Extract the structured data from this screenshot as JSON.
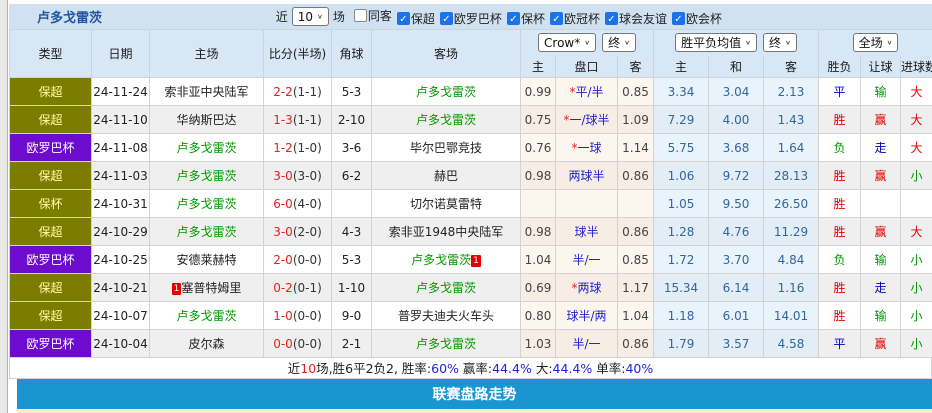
{
  "header": {
    "title": "卢多戈雷茨",
    "recent_prefix": "近",
    "recent_value": "10",
    "recent_suffix": "场",
    "filters": [
      {
        "label": "同客",
        "checked": false
      },
      {
        "label": "保超",
        "checked": true
      },
      {
        "label": "欧罗巴杯",
        "checked": true
      },
      {
        "label": "保杯",
        "checked": true
      },
      {
        "label": "欧冠杯",
        "checked": true
      },
      {
        "label": "球会友谊",
        "checked": true
      },
      {
        "label": "欧会杯",
        "checked": true
      }
    ]
  },
  "table": {
    "left_headers": [
      "类型",
      "日期",
      "主场",
      "比分(半场)",
      "角球",
      "客场"
    ],
    "selects": {
      "company": "Crow*",
      "company_time": "终",
      "europe": "胜平负均值",
      "europe_time": "终",
      "goals_scope": "全场"
    },
    "sub_headers": [
      "主",
      "盘口",
      "客",
      "主",
      "和",
      "客",
      "胜负",
      "让球",
      "进球数"
    ],
    "rows": [
      {
        "type": "保超",
        "type_color": "olive",
        "date": "24-11-24",
        "home": "索非亚中央陆军",
        "home_green": false,
        "home_badge": "",
        "score_ft": "2-2",
        "score_ht": "(1-1)",
        "corner": "5-3",
        "away": "卢多戈雷茨",
        "away_green": true,
        "away_badge": "",
        "asian_home": "0.99",
        "handicap_star": "*",
        "handicap": "平/半",
        "asian_away": "0.85",
        "eu_home": "3.34",
        "eu_draw": "3.04",
        "eu_away": "2.13",
        "result": "平",
        "result_color": "blue",
        "let_result": "输",
        "let_color": "green",
        "goals": "大",
        "goals_color": "red"
      },
      {
        "type": "保超",
        "type_color": "olive",
        "date": "24-11-10",
        "home": "华纳斯巴达",
        "home_green": false,
        "home_badge": "",
        "score_ft": "1-3",
        "score_ht": "(1-1)",
        "corner": "2-10",
        "away": "卢多戈雷茨",
        "away_green": true,
        "away_badge": "",
        "asian_home": "0.75",
        "handicap_star": "*",
        "handicap": "一/球半",
        "asian_away": "1.09",
        "eu_home": "7.29",
        "eu_draw": "4.00",
        "eu_away": "1.43",
        "result": "胜",
        "result_color": "red",
        "let_result": "赢",
        "let_color": "red",
        "goals": "大",
        "goals_color": "red"
      },
      {
        "type": "欧罗巴杯",
        "type_color": "purple",
        "date": "24-11-08",
        "home": "卢多戈雷茨",
        "home_green": true,
        "home_badge": "",
        "score_ft": "1-2",
        "score_ht": "(1-0)",
        "corner": "3-6",
        "away": "毕尔巴鄂竞技",
        "away_green": false,
        "away_badge": "",
        "asian_home": "0.76",
        "handicap_star": "*",
        "handicap": "一球",
        "asian_away": "1.14",
        "eu_home": "5.75",
        "eu_draw": "3.68",
        "eu_away": "1.64",
        "result": "负",
        "result_color": "green",
        "let_result": "走",
        "let_color": "blue",
        "goals": "大",
        "goals_color": "red"
      },
      {
        "type": "保超",
        "type_color": "olive",
        "date": "24-11-03",
        "home": "卢多戈雷茨",
        "home_green": true,
        "home_badge": "",
        "score_ft": "3-0",
        "score_ht": "(3-0)",
        "corner": "6-2",
        "away": "赫巴",
        "away_green": false,
        "away_badge": "",
        "asian_home": "0.98",
        "handicap_star": "",
        "handicap": "两球半",
        "asian_away": "0.86",
        "eu_home": "1.06",
        "eu_draw": "9.72",
        "eu_away": "28.13",
        "result": "胜",
        "result_color": "red",
        "let_result": "赢",
        "let_color": "red",
        "goals": "小",
        "goals_color": "green"
      },
      {
        "type": "保杯",
        "type_color": "olive",
        "date": "24-10-31",
        "home": "卢多戈雷茨",
        "home_green": true,
        "home_badge": "",
        "score_ft": "6-0",
        "score_ht": "(4-0)",
        "corner": "",
        "away": "切尔诺莫雷特",
        "away_green": false,
        "away_badge": "",
        "asian_home": "",
        "handicap_star": "",
        "handicap": "",
        "asian_away": "",
        "eu_home": "1.05",
        "eu_draw": "9.50",
        "eu_away": "26.50",
        "result": "胜",
        "result_color": "red",
        "let_result": "",
        "let_color": "",
        "goals": "",
        "goals_color": ""
      },
      {
        "type": "保超",
        "type_color": "olive",
        "date": "24-10-29",
        "home": "卢多戈雷茨",
        "home_green": true,
        "home_badge": "",
        "score_ft": "3-0",
        "score_ht": "(2-0)",
        "corner": "4-3",
        "away": "索非亚1948中央陆军",
        "away_green": false,
        "away_badge": "",
        "asian_home": "0.98",
        "handicap_star": "",
        "handicap": "球半",
        "asian_away": "0.86",
        "eu_home": "1.28",
        "eu_draw": "4.76",
        "eu_away": "11.29",
        "result": "胜",
        "result_color": "red",
        "let_result": "赢",
        "let_color": "red",
        "goals": "大",
        "goals_color": "red"
      },
      {
        "type": "欧罗巴杯",
        "type_color": "purple",
        "date": "24-10-25",
        "home": "安德莱赫特",
        "home_green": false,
        "home_badge": "",
        "score_ft": "2-0",
        "score_ht": "(0-0)",
        "corner": "5-3",
        "away": "卢多戈雷茨",
        "away_green": true,
        "away_badge": "1",
        "asian_home": "1.04",
        "handicap_star": "",
        "handicap": "半/一",
        "asian_away": "0.85",
        "eu_home": "1.72",
        "eu_draw": "3.70",
        "eu_away": "4.84",
        "result": "负",
        "result_color": "green",
        "let_result": "输",
        "let_color": "green",
        "goals": "小",
        "goals_color": "green"
      },
      {
        "type": "保超",
        "type_color": "olive",
        "date": "24-10-21",
        "home": "塞普特姆里",
        "home_green": false,
        "home_badge": "1",
        "score_ft": "0-2",
        "score_ht": "(0-1)",
        "corner": "1-10",
        "away": "卢多戈雷茨",
        "away_green": true,
        "away_badge": "",
        "asian_home": "0.69",
        "handicap_star": "*",
        "handicap": "两球",
        "asian_away": "1.17",
        "eu_home": "15.34",
        "eu_draw": "6.14",
        "eu_away": "1.16",
        "result": "胜",
        "result_color": "red",
        "let_result": "走",
        "let_color": "blue",
        "goals": "小",
        "goals_color": "green"
      },
      {
        "type": "保超",
        "type_color": "olive",
        "date": "24-10-07",
        "home": "卢多戈雷茨",
        "home_green": true,
        "home_badge": "",
        "score_ft": "1-0",
        "score_ht": "(0-0)",
        "corner": "9-0",
        "away": "普罗夫迪夫火车头",
        "away_green": false,
        "away_badge": "",
        "asian_home": "0.80",
        "handicap_star": "",
        "handicap": "球半/两",
        "asian_away": "1.04",
        "eu_home": "1.18",
        "eu_draw": "6.01",
        "eu_away": "14.01",
        "result": "胜",
        "result_color": "red",
        "let_result": "输",
        "let_color": "green",
        "goals": "小",
        "goals_color": "green"
      },
      {
        "type": "欧罗巴杯",
        "type_color": "purple",
        "date": "24-10-04",
        "home": "皮尔森",
        "home_green": false,
        "home_badge": "",
        "score_ft": "0-0",
        "score_ht": "(0-0)",
        "corner": "2-1",
        "away": "卢多戈雷茨",
        "away_green": true,
        "away_badge": "",
        "asian_home": "1.03",
        "handicap_star": "",
        "handicap": "半/一",
        "asian_away": "0.86",
        "eu_home": "1.79",
        "eu_draw": "3.57",
        "eu_away": "4.58",
        "result": "平",
        "result_color": "blue",
        "let_result": "赢",
        "let_color": "red",
        "goals": "小",
        "goals_color": "green"
      }
    ]
  },
  "summary": {
    "segments": [
      {
        "text": "近",
        "color": "black"
      },
      {
        "text": "10",
        "color": "red"
      },
      {
        "text": "场,胜6平2负2, 胜率:",
        "color": "black"
      },
      {
        "text": "60%",
        "color": "blue"
      },
      {
        "text": " 赢率:",
        "color": "black"
      },
      {
        "text": "44.4%",
        "color": "blue"
      },
      {
        "text": " 大:",
        "color": "black"
      },
      {
        "text": "44.4%",
        "color": "blue"
      },
      {
        "text": " 单率:",
        "color": "black"
      },
      {
        "text": "40%",
        "color": "blue"
      }
    ]
  },
  "footer": {
    "label": "联赛盘路走势"
  },
  "colors": {
    "accent_bar": "#1b94d2",
    "title_blue": "#2155a3",
    "checkbox_blue": "#1a73e8",
    "type_olive": "#7c7c00",
    "type_purple": "#6d0bce",
    "win_red": "#e60000",
    "draw_blue": "#0000cc",
    "lose_green": "#009900",
    "team_green": "#009900",
    "score_red": "#e32222",
    "handicap_blue": "#2222cc",
    "europe_odds_blue": "#336699"
  }
}
